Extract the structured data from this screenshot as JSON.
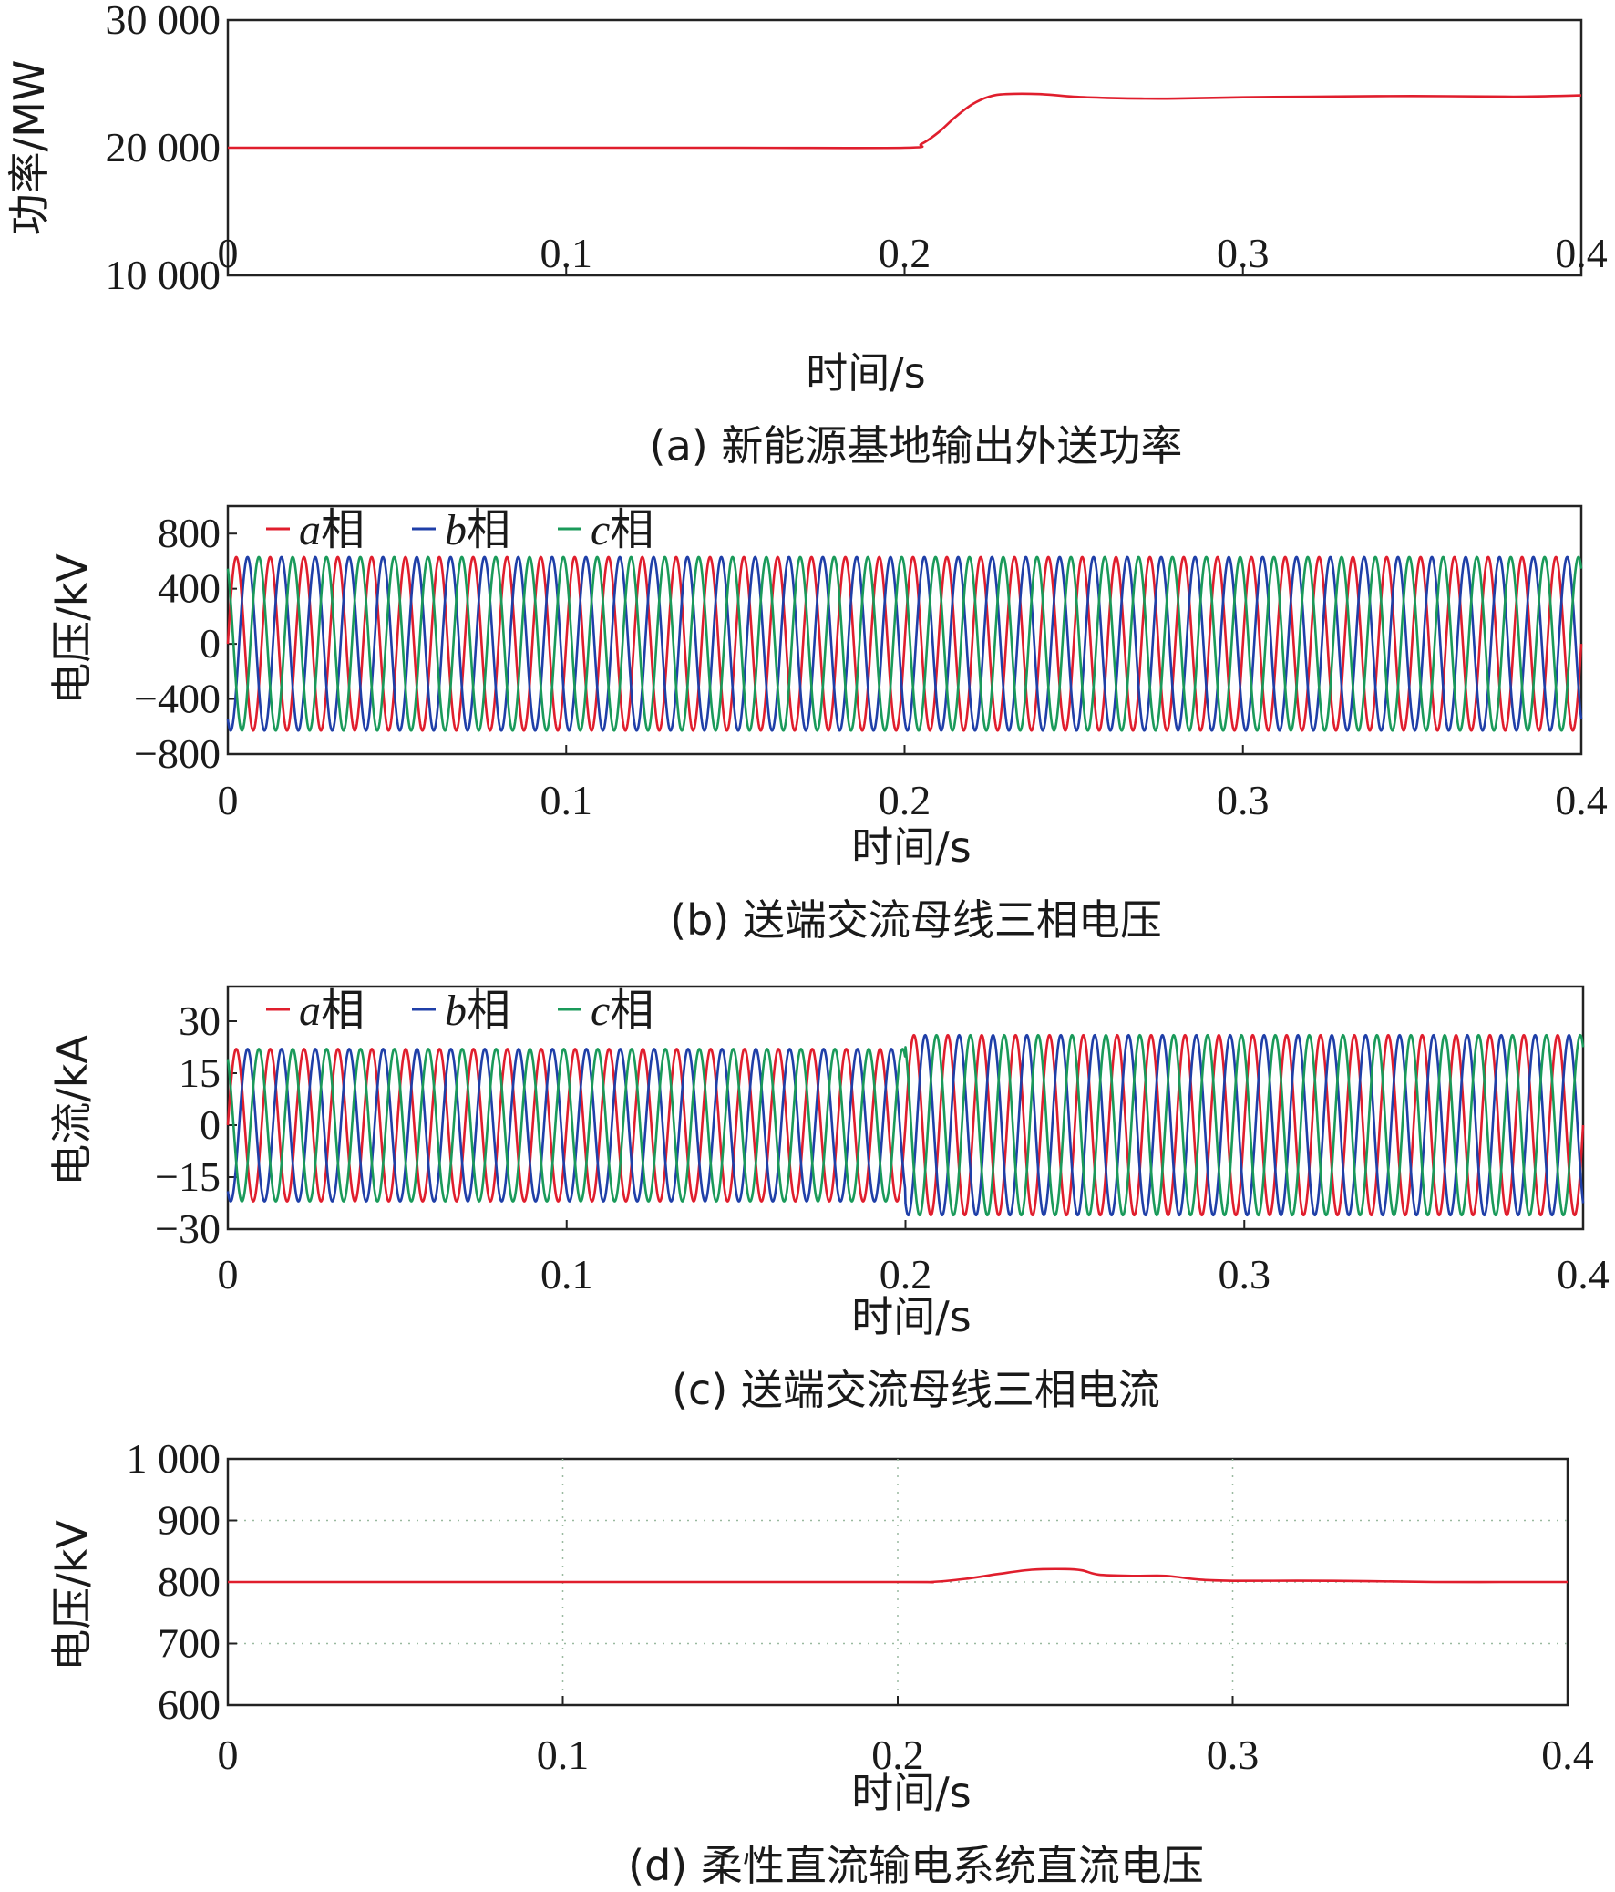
{
  "chart_data": [
    {
      "type": "line",
      "caption": "(a) 新能源基地输出外送功率",
      "xlabel": "时间/s",
      "ylabel": "功率/MW",
      "xlim": [
        0,
        0.4
      ],
      "ylim": [
        10000,
        30000
      ],
      "xticks": [
        0,
        0.1,
        0.2,
        0.3,
        0.4
      ],
      "xtick_labels": [
        "0",
        "0.1",
        "0.2",
        "0.3",
        "0.4"
      ],
      "yticks": [
        10000,
        20000,
        30000
      ],
      "ytick_labels": [
        "10 000",
        "20 000",
        "30 000"
      ],
      "series": [
        {
          "color": "#e01e2d",
          "x": [
            0,
            0.05,
            0.1,
            0.15,
            0.2,
            0.205,
            0.21,
            0.215,
            0.22,
            0.225,
            0.23,
            0.24,
            0.25,
            0.26,
            0.27,
            0.28,
            0.3,
            0.32,
            0.35,
            0.38,
            0.4
          ],
          "y": [
            20000,
            20000,
            20000,
            20000,
            20000,
            20300,
            21200,
            22400,
            23400,
            24000,
            24200,
            24200,
            24000,
            23900,
            23850,
            23850,
            23950,
            24000,
            24050,
            24000,
            24100
          ]
        }
      ]
    },
    {
      "type": "line",
      "caption": "(b) 送端交流母线三相电压",
      "xlabel": "时间/s",
      "ylabel": "电压/kV",
      "xlim": [
        0,
        0.4
      ],
      "ylim": [
        -800,
        1000
      ],
      "xticks": [
        0,
        0.1,
        0.2,
        0.3,
        0.4
      ],
      "xtick_labels": [
        "0",
        "0.1",
        "0.2",
        "0.3",
        "0.4"
      ],
      "yticks": [
        -800,
        -400,
        0,
        400,
        800
      ],
      "ytick_labels": [
        "−800",
        "−400",
        "0",
        "400",
        "800"
      ],
      "waveform": {
        "frequency_hz": 100,
        "amplitude_before": 630,
        "amplitude_after": 630,
        "step_time": 0.2,
        "phase_shift_deg": [
          0,
          -120,
          120
        ]
      },
      "series": [
        {
          "name": "a相",
          "symbol": "a",
          "suffix": "相",
          "color": "#e01e2d"
        },
        {
          "name": "b相",
          "symbol": "b",
          "suffix": "相",
          "color": "#1f3fa8"
        },
        {
          "name": "c相",
          "symbol": "c",
          "suffix": "相",
          "color": "#1a9a5a"
        }
      ]
    },
    {
      "type": "line",
      "caption": "(c) 送端交流母线三相电流",
      "xlabel": "时间/s",
      "ylabel": "电流/kA",
      "xlim": [
        0,
        0.4
      ],
      "ylim": [
        -30,
        40
      ],
      "xticks": [
        0,
        0.1,
        0.2,
        0.3,
        0.4
      ],
      "xtick_labels": [
        "0",
        "0.1",
        "0.2",
        "0.3",
        "0.4"
      ],
      "yticks": [
        -30,
        -15,
        0,
        15,
        30
      ],
      "ytick_labels": [
        "−30",
        "−15",
        "0",
        "15",
        "30"
      ],
      "waveform": {
        "frequency_hz": 100,
        "amplitude_before": 22,
        "amplitude_after": 26,
        "step_time": 0.2,
        "phase_shift_deg": [
          0,
          -120,
          120
        ]
      },
      "series": [
        {
          "name": "a相",
          "symbol": "a",
          "suffix": "相",
          "color": "#e01e2d"
        },
        {
          "name": "b相",
          "symbol": "b",
          "suffix": "相",
          "color": "#1f3fa8"
        },
        {
          "name": "c相",
          "symbol": "c",
          "suffix": "相",
          "color": "#1a9a5a"
        }
      ]
    },
    {
      "type": "line",
      "caption": "(d) 柔性直流输电系统直流电压",
      "xlabel": "时间/s",
      "ylabel": "电压/kV",
      "xlim": [
        0,
        0.4
      ],
      "ylim": [
        600,
        1000
      ],
      "xticks": [
        0,
        0.1,
        0.2,
        0.3,
        0.4
      ],
      "xtick_labels": [
        "0",
        "0.1",
        "0.2",
        "0.3",
        "0.4"
      ],
      "yticks": [
        600,
        700,
        800,
        900,
        1000
      ],
      "ytick_labels": [
        "600",
        "700",
        "800",
        "900",
        "1 000"
      ],
      "series": [
        {
          "color": "#e01e2d",
          "x": [
            0,
            0.1,
            0.2,
            0.21,
            0.22,
            0.23,
            0.24,
            0.25,
            0.255,
            0.26,
            0.27,
            0.28,
            0.29,
            0.3,
            0.33,
            0.36,
            0.38,
            0.4
          ],
          "y": [
            800,
            800,
            800,
            800,
            805,
            813,
            820,
            821,
            819,
            812,
            810,
            810,
            804,
            802,
            802,
            800,
            800,
            800
          ]
        }
      ]
    }
  ]
}
